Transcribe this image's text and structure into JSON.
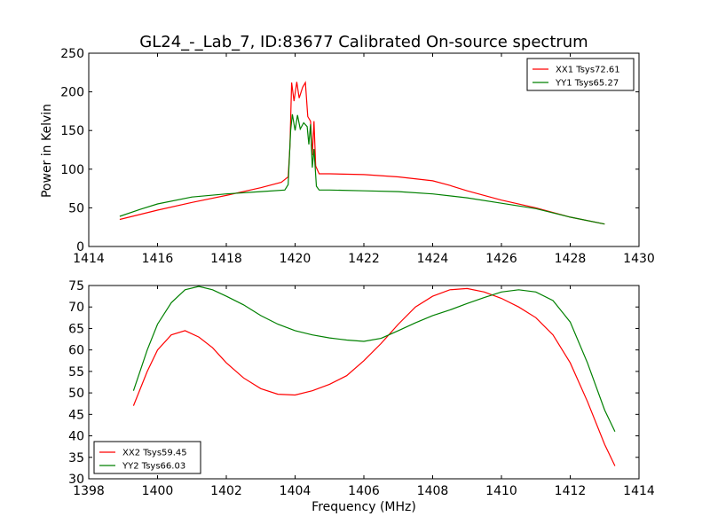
{
  "chart_data": {
    "type": "line",
    "title": "GL24_-_Lab_7, ID:83677 Calibrated On-source spectrum",
    "xlabel": "Frequency (MHz)",
    "panels": [
      {
        "ylabel": "Power in Kelvin",
        "xlim": [
          1414,
          1430
        ],
        "ylim": [
          0,
          250
        ],
        "xticks": [
          1414,
          1416,
          1418,
          1420,
          1422,
          1424,
          1426,
          1428,
          1430
        ],
        "yticks": [
          0,
          50,
          100,
          150,
          200,
          250
        ],
        "legend": "top-right",
        "series": [
          {
            "name": "XX1 Tsys72.61",
            "color": "#ff0000",
            "points": [
              [
                1414.9,
                35
              ],
              [
                1416,
                47
              ],
              [
                1417,
                57
              ],
              [
                1418,
                66
              ],
              [
                1419,
                76
              ],
              [
                1419.6,
                83
              ],
              [
                1419.8,
                90
              ],
              [
                1419.85,
                130
              ],
              [
                1419.9,
                212
              ],
              [
                1419.97,
                188
              ],
              [
                1420.05,
                213
              ],
              [
                1420.12,
                192
              ],
              [
                1420.22,
                206
              ],
              [
                1420.3,
                212
              ],
              [
                1420.37,
                168
              ],
              [
                1420.45,
                162
              ],
              [
                1420.5,
                118
              ],
              [
                1420.55,
                162
              ],
              [
                1420.6,
                104
              ],
              [
                1420.7,
                94
              ],
              [
                1421,
                94
              ],
              [
                1422,
                93
              ],
              [
                1423,
                90
              ],
              [
                1424,
                85
              ],
              [
                1424.5,
                79
              ],
              [
                1425,
                72
              ],
              [
                1426,
                60
              ],
              [
                1427,
                50
              ],
              [
                1428,
                38
              ],
              [
                1429,
                29
              ]
            ]
          },
          {
            "name": "YY1 Tsys65.27",
            "color": "#008000",
            "points": [
              [
                1414.9,
                39
              ],
              [
                1415.5,
                48
              ],
              [
                1416,
                55
              ],
              [
                1417,
                64
              ],
              [
                1418,
                68
              ],
              [
                1419,
                71
              ],
              [
                1419.7,
                73
              ],
              [
                1419.8,
                80
              ],
              [
                1419.87,
                150
              ],
              [
                1419.92,
                171
              ],
              [
                1420,
                150
              ],
              [
                1420.07,
                170
              ],
              [
                1420.15,
                152
              ],
              [
                1420.25,
                160
              ],
              [
                1420.35,
                155
              ],
              [
                1420.4,
                132
              ],
              [
                1420.45,
                158
              ],
              [
                1420.5,
                102
              ],
              [
                1420.55,
                126
              ],
              [
                1420.62,
                78
              ],
              [
                1420.7,
                73
              ],
              [
                1421,
                73
              ],
              [
                1422,
                72
              ],
              [
                1423,
                71
              ],
              [
                1424,
                68
              ],
              [
                1425,
                63
              ],
              [
                1426,
                56
              ],
              [
                1427,
                49
              ],
              [
                1428,
                38
              ],
              [
                1429,
                29
              ]
            ]
          }
        ]
      },
      {
        "ylabel": "",
        "xlim": [
          1398,
          1414
        ],
        "ylim": [
          30,
          75
        ],
        "xticks": [
          1398,
          1400,
          1402,
          1404,
          1406,
          1408,
          1410,
          1412,
          1414
        ],
        "yticks": [
          30,
          35,
          40,
          45,
          50,
          55,
          60,
          65,
          70,
          75
        ],
        "legend": "bottom-left",
        "series": [
          {
            "name": "XX2 Tsys59.45",
            "color": "#ff0000",
            "points": [
              [
                1399.3,
                47
              ],
              [
                1399.7,
                55
              ],
              [
                1400,
                60
              ],
              [
                1400.4,
                63.5
              ],
              [
                1400.8,
                64.5
              ],
              [
                1401.2,
                63
              ],
              [
                1401.6,
                60.5
              ],
              [
                1402,
                57
              ],
              [
                1402.5,
                53.5
              ],
              [
                1403,
                51
              ],
              [
                1403.5,
                49.7
              ],
              [
                1404,
                49.5
              ],
              [
                1404.5,
                50.5
              ],
              [
                1405,
                52
              ],
              [
                1405.5,
                54
              ],
              [
                1406,
                57.5
              ],
              [
                1406.5,
                61.5
              ],
              [
                1407,
                66
              ],
              [
                1407.5,
                70
              ],
              [
                1408,
                72.5
              ],
              [
                1408.5,
                74
              ],
              [
                1409,
                74.3
              ],
              [
                1409.5,
                73.5
              ],
              [
                1410,
                72
              ],
              [
                1410.5,
                70
              ],
              [
                1411,
                67.5
              ],
              [
                1411.5,
                63.5
              ],
              [
                1412,
                57
              ],
              [
                1412.5,
                48
              ],
              [
                1413,
                38
              ],
              [
                1413.3,
                33
              ]
            ]
          },
          {
            "name": "YY2 Tsys66.03",
            "color": "#008000",
            "points": [
              [
                1399.3,
                50.5
              ],
              [
                1399.7,
                60
              ],
              [
                1400,
                66
              ],
              [
                1400.4,
                71
              ],
              [
                1400.8,
                74
              ],
              [
                1401.2,
                74.8
              ],
              [
                1401.6,
                74
              ],
              [
                1402,
                72.5
              ],
              [
                1402.5,
                70.5
              ],
              [
                1403,
                68
              ],
              [
                1403.5,
                66
              ],
              [
                1404,
                64.5
              ],
              [
                1404.5,
                63.5
              ],
              [
                1405,
                62.8
              ],
              [
                1405.5,
                62.3
              ],
              [
                1406,
                62
              ],
              [
                1406.5,
                62.7
              ],
              [
                1407,
                64.5
              ],
              [
                1407.5,
                66.3
              ],
              [
                1408,
                68
              ],
              [
                1408.5,
                69.3
              ],
              [
                1409,
                70.8
              ],
              [
                1409.5,
                72.2
              ],
              [
                1410,
                73.5
              ],
              [
                1410.5,
                74
              ],
              [
                1411,
                73.5
              ],
              [
                1411.5,
                71.5
              ],
              [
                1412,
                66.5
              ],
              [
                1412.5,
                57
              ],
              [
                1413,
                46
              ],
              [
                1413.3,
                41
              ]
            ]
          }
        ]
      }
    ]
  }
}
